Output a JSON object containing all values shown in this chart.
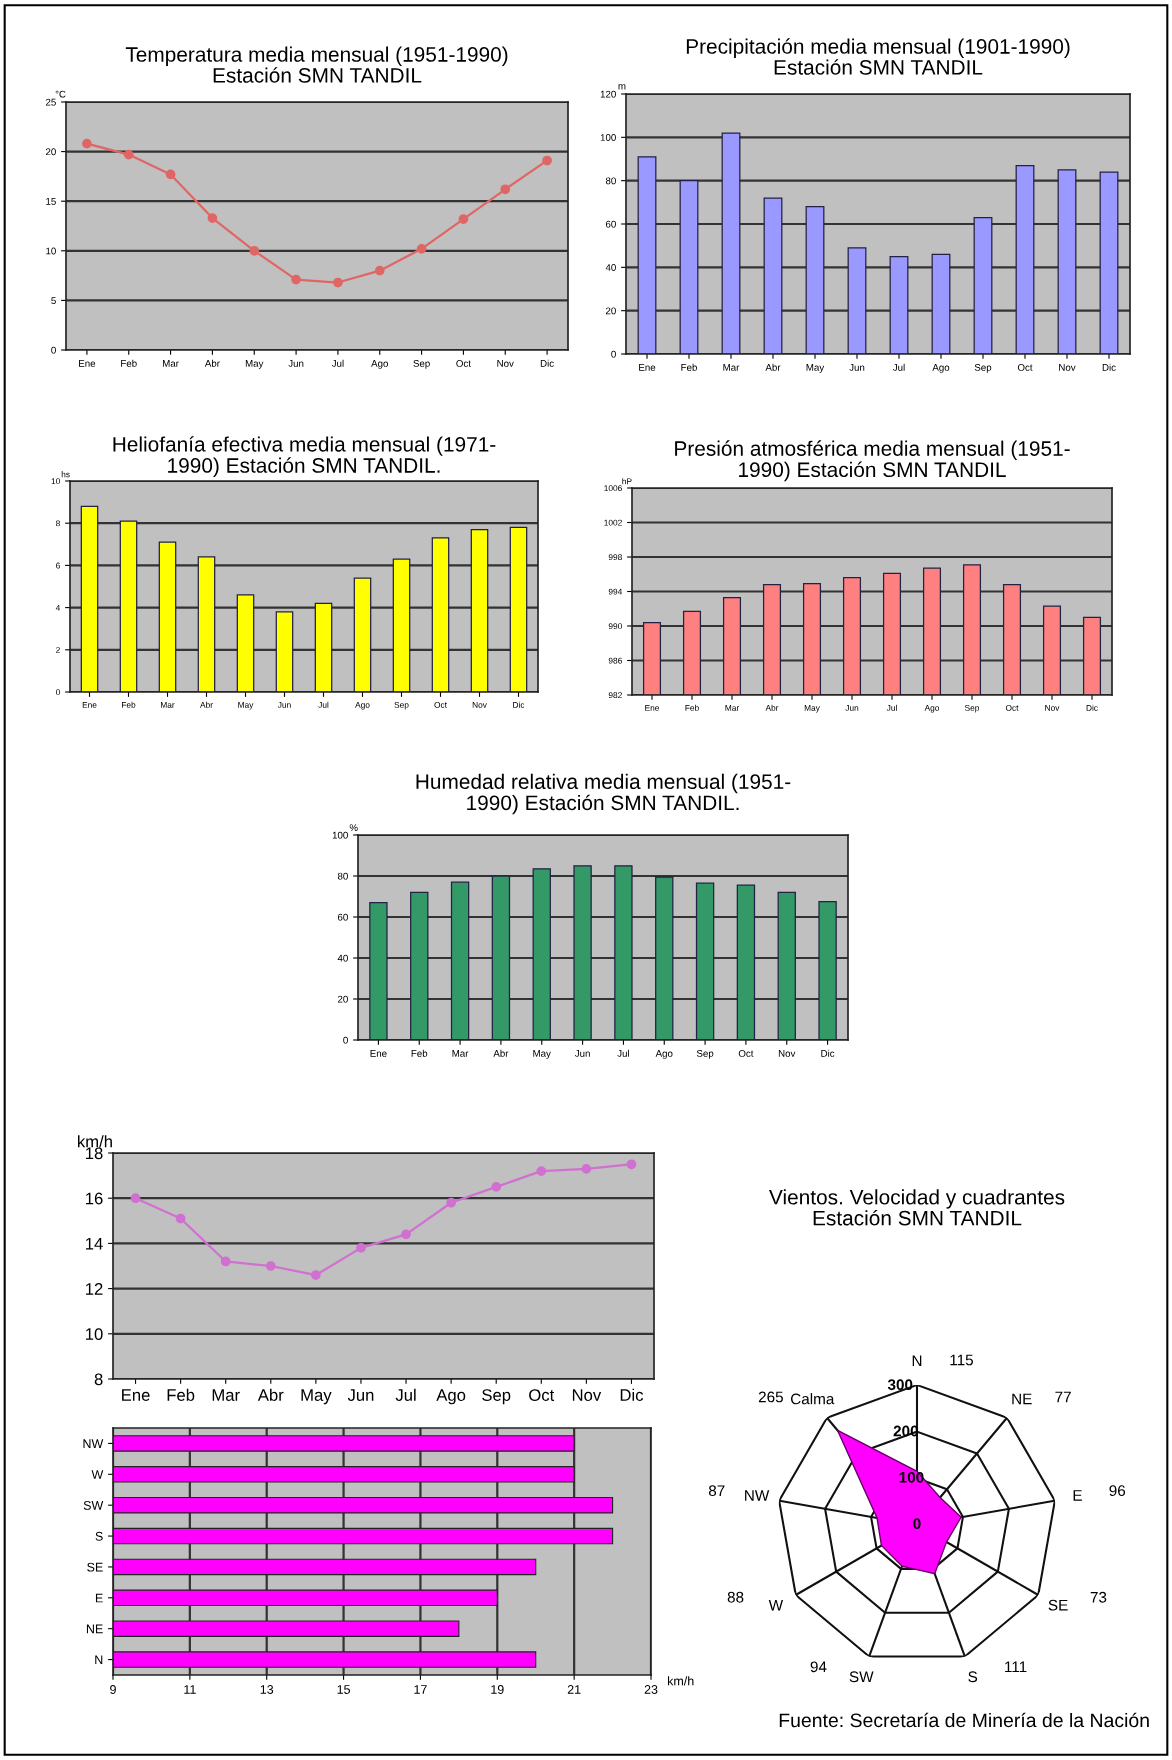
{
  "chart_data": [
    {
      "type": "line",
      "title": "Temperatura media mensual (1951-1990)\nEstación SMN TANDIL",
      "ylabel": "°C",
      "categories": [
        "Ene",
        "Feb",
        "Mar",
        "Abr",
        "May",
        "Jun",
        "Jul",
        "Ago",
        "Sep",
        "Oct",
        "Nov",
        "Dic"
      ],
      "series": [
        {
          "color": "#e06666",
          "values": [
            20.8,
            19.7,
            17.7,
            13.3,
            10.0,
            7.1,
            6.8,
            8.0,
            10.2,
            13.2,
            16.2,
            19.1
          ]
        }
      ],
      "marker": "circle",
      "line_style": "solid",
      "ylim": [
        0,
        25
      ],
      "yticks": [
        0,
        5,
        10,
        15,
        20,
        25
      ],
      "grid": "y"
    },
    {
      "type": "bar",
      "title": "Precipitación media mensual (1901-1990)\nEstación SMN TANDIL",
      "ylabel": "m",
      "categories": [
        "Ene",
        "Feb",
        "Mar",
        "Abr",
        "May",
        "Jun",
        "Jul",
        "Ago",
        "Sep",
        "Oct",
        "Nov",
        "Dic"
      ],
      "values": [
        91,
        80,
        102,
        72,
        68,
        49,
        45,
        46,
        63,
        87,
        85,
        84
      ],
      "color": "#9999ff",
      "ylim": [
        0,
        120
      ],
      "yticks": [
        0,
        20,
        40,
        60,
        80,
        100,
        120
      ],
      "grid": "y"
    },
    {
      "type": "bar",
      "title": "Heliofanía efectiva media mensual (1971-\n1990) Estación SMN TANDIL.",
      "ylabel": "hs",
      "categories": [
        "Ene",
        "Feb",
        "Mar",
        "Abr",
        "May",
        "Jun",
        "Jul",
        "Ago",
        "Sep",
        "Oct",
        "Nov",
        "Dic"
      ],
      "values": [
        8.8,
        8.1,
        7.1,
        6.4,
        4.6,
        3.8,
        4.2,
        5.4,
        6.3,
        7.3,
        7.7,
        7.8
      ],
      "color": "#ffff00",
      "ylim": [
        0,
        10
      ],
      "yticks": [
        0,
        2,
        4,
        6,
        8,
        10
      ],
      "grid": "y"
    },
    {
      "type": "bar",
      "title": "Presión atmosférica media mensual (1951-\n1990) Estación SMN TANDIL",
      "ylabel": "hP",
      "categories": [
        "Ene",
        "Feb",
        "Mar",
        "Abr",
        "May",
        "Jun",
        "Jul",
        "Ago",
        "Sep",
        "Oct",
        "Nov",
        "Dic"
      ],
      "values": [
        990.4,
        991.7,
        993.3,
        994.8,
        994.9,
        995.6,
        996.1,
        996.7,
        997.1,
        994.8,
        992.3,
        991.0
      ],
      "color": "#ff8080",
      "ylim": [
        982,
        1006
      ],
      "yticks": [
        982,
        986,
        990,
        994,
        998,
        1002,
        1006
      ],
      "grid": "y"
    },
    {
      "type": "bar",
      "title": "Humedad relativa media mensual (1951-\n1990) Estación SMN TANDIL.",
      "ylabel": "%",
      "categories": [
        "Ene",
        "Feb",
        "Mar",
        "Abr",
        "May",
        "Jun",
        "Jul",
        "Ago",
        "Sep",
        "Oct",
        "Nov",
        "Dic"
      ],
      "values": [
        67,
        72,
        77,
        80,
        83.5,
        85,
        85,
        79.5,
        76.5,
        75.5,
        72,
        67.5
      ],
      "color": "#339966",
      "ylim": [
        0,
        100
      ],
      "yticks": [
        0,
        20,
        40,
        60,
        80,
        100
      ],
      "grid": "y"
    },
    {
      "type": "line",
      "ylabel": "km/h",
      "categories": [
        "Ene",
        "Feb",
        "Mar",
        "Abr",
        "May",
        "Jun",
        "Jul",
        "Ago",
        "Sep",
        "Oct",
        "Nov",
        "Dic"
      ],
      "series": [
        {
          "color": "#d070d0",
          "values": [
            16.0,
            15.1,
            13.2,
            13.0,
            12.6,
            13.8,
            14.4,
            15.8,
            16.5,
            17.2,
            17.3,
            17.5
          ]
        }
      ],
      "marker": "circle",
      "line_style": "solid",
      "ylim": [
        8,
        18
      ],
      "yticks": [
        8,
        10,
        12,
        14,
        16,
        18
      ],
      "grid": "y"
    },
    {
      "type": "bar",
      "orientation": "horizontal",
      "xlabel": "km/h",
      "categories": [
        "NW",
        "W",
        "SW",
        "S",
        "SE",
        "E",
        "NE",
        "N"
      ],
      "values": [
        21,
        21,
        22,
        22,
        20,
        19,
        18,
        20
      ],
      "color": "#ff00ff",
      "xlim": [
        9,
        23
      ],
      "xticks": [
        9,
        11,
        13,
        15,
        17,
        19,
        21,
        23
      ],
      "grid": "x"
    },
    {
      "type": "radar",
      "title": "Vientos. Velocidad y cuadrantes\nEstación SMN TANDIL",
      "categories": [
        "N",
        "NE",
        "E",
        "SE",
        "S",
        "SW",
        "W",
        "NW",
        "Calma"
      ],
      "series": [
        {
          "color": "#ff00ff",
          "values": [
            115,
            77,
            96,
            73,
            111,
            94,
            88,
            87,
            265
          ]
        }
      ],
      "ylim": [
        0,
        300
      ],
      "yticks": [
        0,
        100,
        200,
        300
      ],
      "grid": true,
      "value_labels": [
        "115",
        "77",
        "96",
        "73",
        "111",
        "94",
        "88",
        "87",
        "265"
      ],
      "annotations": [
        "Fuente: Secretaría de Minería de la Nación"
      ]
    }
  ]
}
